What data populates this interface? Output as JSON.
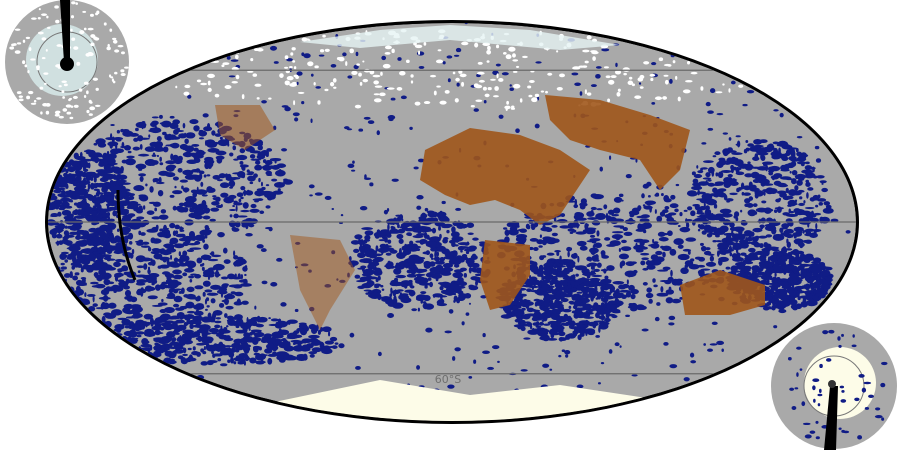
{
  "map": {
    "projection": "mollweide",
    "graticule_labels": [
      "60°S"
    ],
    "colors": {
      "cloud": "#a9a9a9",
      "ocean_clear": "#101c86",
      "land_clear": "#a0561a",
      "snow_ice": "#fdfce8",
      "high_cloud": "#ffffff",
      "graticule": "#6a6a6a",
      "border": "#000000"
    },
    "insets": [
      {
        "name": "north-polar-view"
      },
      {
        "name": "south-polar-view"
      }
    ]
  }
}
